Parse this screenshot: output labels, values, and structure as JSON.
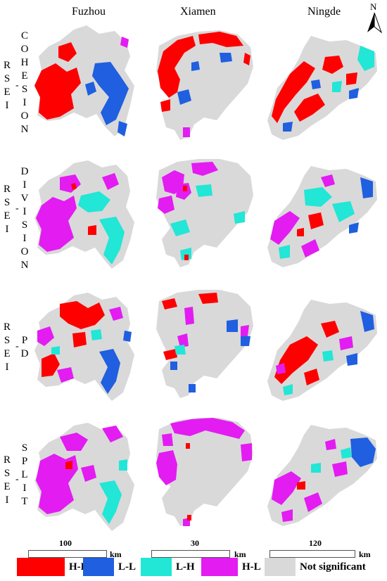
{
  "columns": [
    "Fuzhou",
    "Xiamen",
    "Ningde"
  ],
  "rows": [
    {
      "prefix": "RSEI",
      "suffix": "COHESION"
    },
    {
      "prefix": "RSEI",
      "suffix": "DIVISION"
    },
    {
      "prefix": "RSEI",
      "suffix": "PD"
    },
    {
      "prefix": "RSEI",
      "suffix": "SPLIT"
    }
  ],
  "scale_bars": [
    {
      "value": "100",
      "unit": "km"
    },
    {
      "value": "30",
      "unit": "km"
    },
    {
      "value": "120",
      "unit": "km"
    }
  ],
  "north_arrow": "N",
  "legend": [
    {
      "label": "H-H",
      "color": "#ff0000"
    },
    {
      "label": "L-L",
      "color": "#1f5fe0"
    },
    {
      "label": "L-H",
      "color": "#22e6d6"
    },
    {
      "label": "H-L",
      "color": "#e31cf2"
    },
    {
      "label": "Not significant",
      "color": "#d9d9d9"
    }
  ]
}
